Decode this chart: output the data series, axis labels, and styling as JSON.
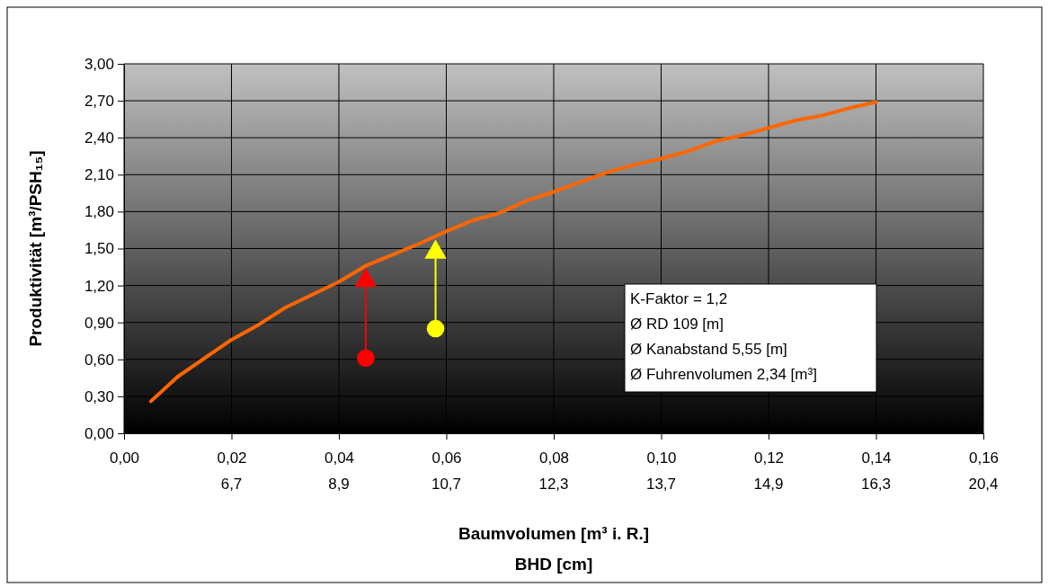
{
  "chart_data": {
    "type": "line",
    "xlabel": "Baumvolumen [m³ i. R.]",
    "ylabel": "Produktivität [m³/PSH₁₅]",
    "x2label": "BHD [cm]",
    "xlim": [
      0,
      0.16
    ],
    "ylim": [
      0,
      3
    ],
    "xticks": [
      {
        "value": 0,
        "label": "0,00"
      },
      {
        "value": 0.02,
        "label": "0,02"
      },
      {
        "value": 0.04,
        "label": "0,04"
      },
      {
        "value": 0.06,
        "label": "0,06"
      },
      {
        "value": 0.08,
        "label": "0,08"
      },
      {
        "value": 0.1,
        "label": "0,10"
      },
      {
        "value": 0.12,
        "label": "0,12"
      },
      {
        "value": 0.14,
        "label": "0,14"
      },
      {
        "value": 0.16,
        "label": "0,16"
      }
    ],
    "yticks": [
      {
        "value": 0,
        "label": "0,00"
      },
      {
        "value": 0.3,
        "label": "0,30"
      },
      {
        "value": 0.6,
        "label": "0,60"
      },
      {
        "value": 0.9,
        "label": "0,90"
      },
      {
        "value": 1.2,
        "label": "1,20"
      },
      {
        "value": 1.5,
        "label": "1,50"
      },
      {
        "value": 1.8,
        "label": "1,80"
      },
      {
        "value": 2.1,
        "label": "2,10"
      },
      {
        "value": 2.4,
        "label": "2,40"
      },
      {
        "value": 2.7,
        "label": "2,70"
      },
      {
        "value": 3,
        "label": "3,00"
      }
    ],
    "grid": true,
    "line_style": "solid",
    "series": [
      {
        "color": "#ff6600",
        "marker": "none",
        "x": [
          0.005,
          0.01,
          0.02,
          0.025,
          0.03,
          0.04,
          0.045,
          0.05,
          0.055,
          0.06,
          0.065,
          0.07,
          0.075,
          0.08,
          0.09,
          0.095,
          0.1,
          0.105,
          0.11,
          0.115,
          0.12,
          0.125,
          0.13,
          0.135,
          0.14
        ],
        "values": [
          0.26,
          0.46,
          0.76,
          0.88,
          1.02,
          1.23,
          1.36,
          1.45,
          1.54,
          1.64,
          1.73,
          1.79,
          1.89,
          1.96,
          2.12,
          2.18,
          2.23,
          2.29,
          2.37,
          2.42,
          2.48,
          2.54,
          2.58,
          2.64,
          2.69
        ]
      },
      {
        "type": "line",
        "color": "#ff0000",
        "marker": "none",
        "x": [
          0.045,
          0.045
        ],
        "values": [
          0.61,
          1.24
        ]
      },
      {
        "type": "line",
        "color": "#ffff00",
        "marker": "none",
        "x": [
          0.058,
          0.058
        ],
        "values": [
          0.85,
          1.47
        ]
      },
      {
        "type": "scatter",
        "marker": "circle",
        "colors": [
          "#ff0000",
          "#ffff00"
        ],
        "x": [
          0.045,
          0.058
        ],
        "values": [
          0.61,
          0.85
        ]
      },
      {
        "type": "scatter",
        "marker": "triangle",
        "colors": [
          "#ff0000",
          "#ffff00"
        ],
        "x": [
          0.045,
          0.058
        ],
        "values": [
          1.24,
          1.47
        ]
      }
    ],
    "annotations": [
      "K-Faktor = 1,2",
      "Ø RD 109 [m]",
      "Ø Kanabstand 5,55 [m]",
      "Ø Fuhrenvolumen 2,34 [m³]",
      "6,7",
      "8,9",
      "10,7",
      "12,3",
      "13,7",
      "14,9",
      "16,3",
      "20,4"
    ]
  }
}
